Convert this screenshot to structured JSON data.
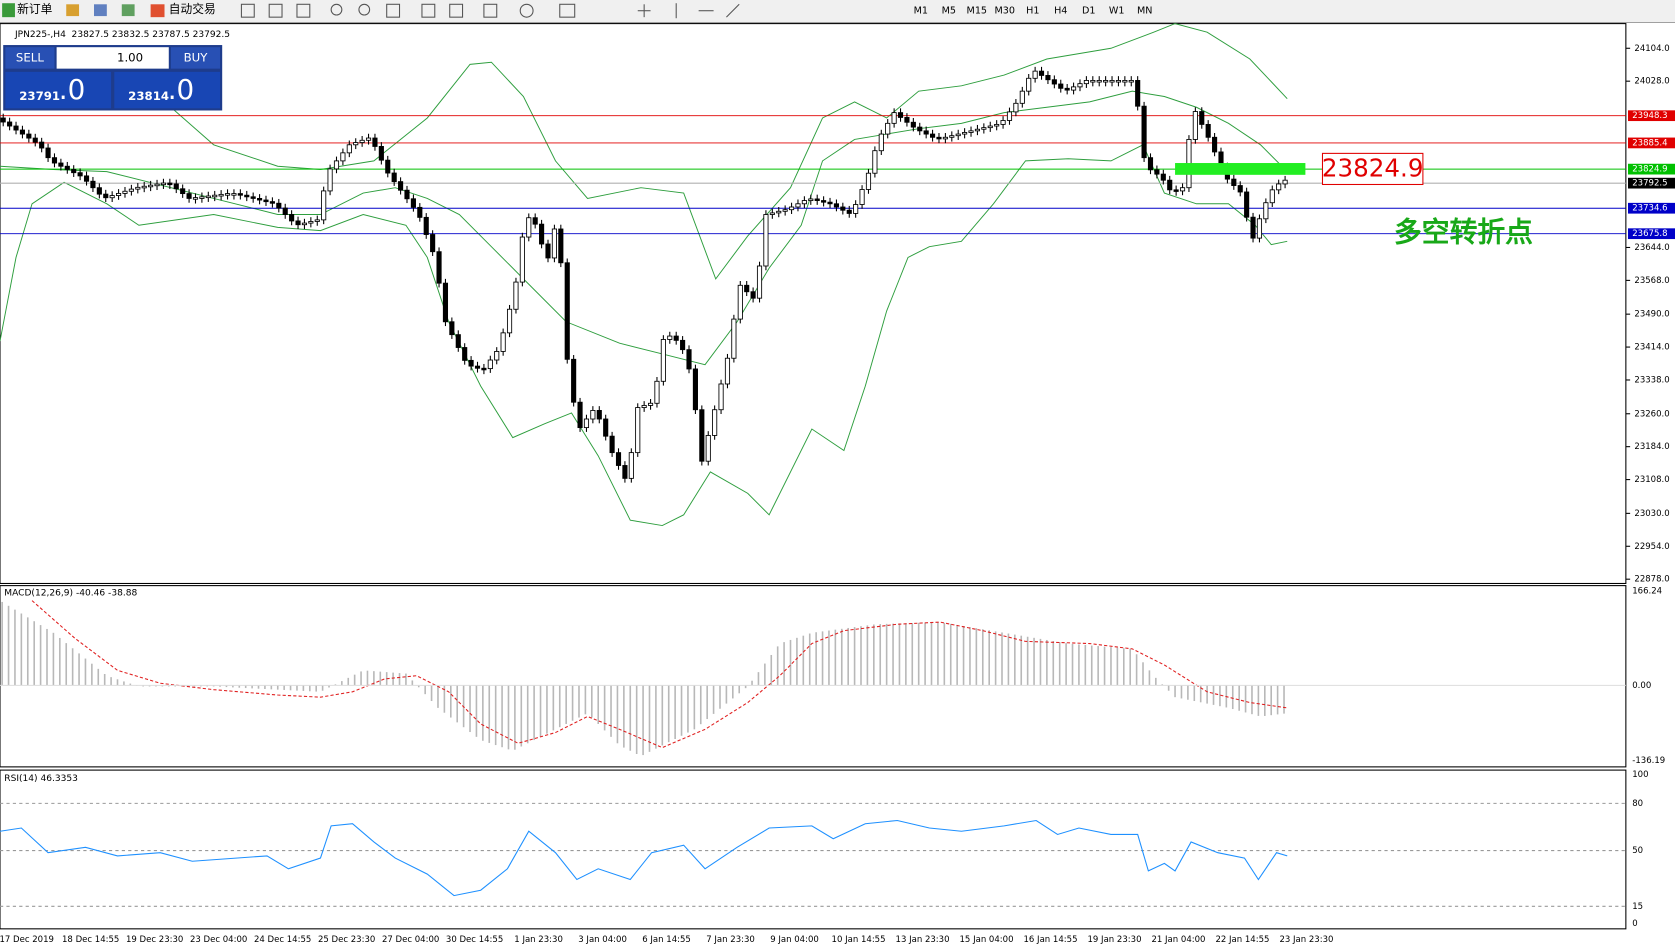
{
  "toolbar": {
    "new_order": "新订单",
    "auto_trading": "自动交易",
    "timeframes": [
      "M1",
      "M5",
      "M15",
      "M30",
      "H1",
      "H4",
      "D1",
      "W1",
      "MN"
    ]
  },
  "chart_header": {
    "symbol": "JPN225-,H4",
    "ohlc": "23827.5 23832.5 23787.5 23792.5"
  },
  "trade_panel": {
    "sell": "SELL",
    "lot": "1.00",
    "buy": "BUY",
    "sell_price": "23791",
    "sell_frac": ".0",
    "buy_price": "23814",
    "buy_frac": ".0"
  },
  "price_axis": [
    "24104.0",
    "24028.0",
    "23644.0",
    "23568.0",
    "23490.0",
    "23414.0",
    "23338.0",
    "23260.0",
    "23184.0",
    "23108.0",
    "23030.0",
    "22954.0",
    "22878.0"
  ],
  "levels": [
    {
      "price": "23948.3",
      "color": "#e00000"
    },
    {
      "price": "23885.4",
      "color": "#e00000"
    },
    {
      "price": "23824.9",
      "color": "#00c000"
    },
    {
      "price": "23734.6",
      "color": "#0000c8"
    },
    {
      "price": "23675.8",
      "color": "#0000c8"
    }
  ],
  "current_price": "23792.5",
  "annotation": {
    "price": "23824.9",
    "note": "多空转折点"
  },
  "macd": {
    "label": "MACD(12,26,9) -40.46 -38.88",
    "axis": [
      "166.24",
      "0.00",
      "-136.19"
    ]
  },
  "rsi": {
    "label": "RSI(14) 46.3353",
    "axis": [
      "100",
      "80",
      "50",
      "15",
      "0"
    ]
  },
  "dates": [
    "17 Dec 2019",
    "18 Dec 14:55",
    "19 Dec 23:30",
    "23 Dec 04:00",
    "24 Dec 14:55",
    "25 Dec 23:30",
    "27 Dec 04:00",
    "30 Dec 14:55",
    "1 Jan 23:30",
    "3 Jan 04:00",
    "6 Jan 14:55",
    "7 Jan 23:30",
    "9 Jan 04:00",
    "10 Jan 14:55",
    "13 Jan 23:30",
    "15 Jan 04:00",
    "16 Jan 14:55",
    "19 Jan 23:30",
    "21 Jan 04:00",
    "22 Jan 14:55",
    "23 Jan 23:30"
  ]
}
